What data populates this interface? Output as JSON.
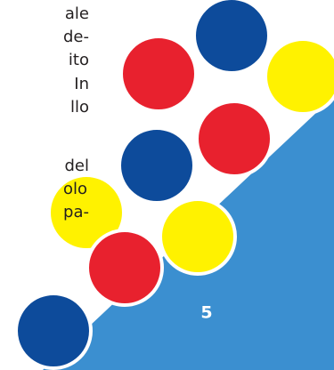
{
  "body_lines": [
    "ale",
    "de-",
    "ito",
    "In",
    "llo",
    "del",
    "olo",
    "pa-"
  ],
  "page_number": "5"
}
